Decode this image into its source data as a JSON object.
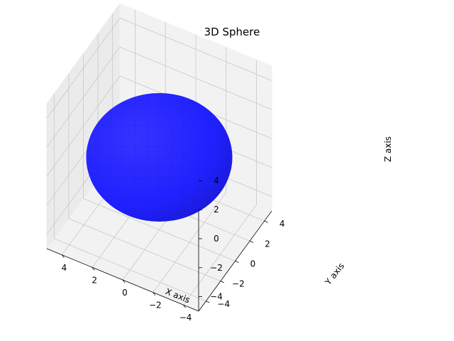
{
  "chart_data": {
    "type": "surface3d",
    "title": "3D Sphere",
    "xlabel": "X axis",
    "ylabel": "Y axis",
    "zlabel": "Z axis",
    "xlim": [
      -5,
      5
    ],
    "ylim": [
      -5,
      5
    ],
    "zlim": [
      -5,
      5
    ],
    "xticks": [
      -4,
      -2,
      0,
      2,
      4
    ],
    "yticks": [
      -4,
      -2,
      0,
      2,
      4
    ],
    "zticks": [
      -4,
      -2,
      0,
      2,
      4
    ],
    "surface": {
      "shape": "sphere",
      "radius": 5,
      "center": [
        0,
        0,
        0
      ],
      "color": "#2020ff"
    },
    "grid": true,
    "pane_color": "#f2f2f2"
  }
}
